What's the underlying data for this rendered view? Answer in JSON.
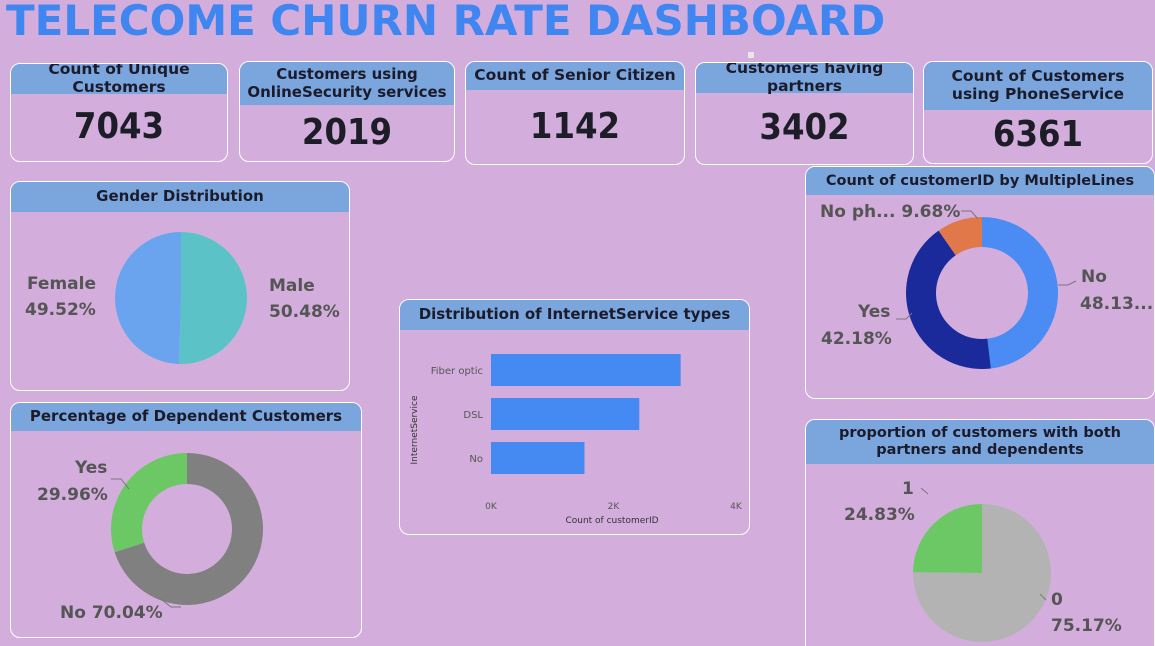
{
  "dashboard": {
    "title": "TELECOME CHURN RATE DASHBOARD"
  },
  "kpis": [
    {
      "label": "Count of Unique Customers",
      "value": "7043"
    },
    {
      "label": "Customers using OnlineSecurity services",
      "value": "2019"
    },
    {
      "label": "Count of Senior Citizen",
      "value": "1142"
    },
    {
      "label": "Customers having partners",
      "value": "3402"
    },
    {
      "label": "Count of Customers using PhoneService",
      "value": "6361"
    }
  ],
  "gender": {
    "title": "Gender Distribution",
    "female_label": "Female",
    "female_pct": "49.52%",
    "male_label": "Male",
    "male_pct": "50.48%",
    "colors": {
      "female": "#6aa3ee",
      "male": "#5bc3c8"
    }
  },
  "dependents": {
    "title": "Percentage of Dependent Customers",
    "yes_label": "Yes",
    "yes_pct": "29.96%",
    "no_label": "No 70.04%",
    "colors": {
      "yes": "#6cc865",
      "no": "#808080"
    }
  },
  "internet": {
    "title": "Distribution of InternetService types",
    "ylabel": "InternetService",
    "xlabel": "Count of customerID",
    "ticks": [
      "0K",
      "2K",
      "4K"
    ],
    "color": "#448af2"
  },
  "multiplelines": {
    "title": "Count of customerID by MultipleLines",
    "nophone_label": "No ph... 9.68%",
    "no_label": "No",
    "no_pct": "48.13...",
    "yes_label": "Yes",
    "yes_pct": "42.18%",
    "colors": {
      "no": "#4a8cf4",
      "yes": "#1a2a9a",
      "nophone": "#e0784a"
    }
  },
  "partners_dependents": {
    "title": "proportion of customers with both partners and dependents",
    "one_label": "1",
    "one_pct": "24.83%",
    "zero_label": "0",
    "zero_pct": "75.17%",
    "colors": {
      "one": "#6cc865",
      "zero": "#b3b3b3"
    }
  },
  "chart_data": [
    {
      "type": "pie",
      "title": "Gender Distribution",
      "categories": [
        "Female",
        "Male"
      ],
      "values": [
        49.52,
        50.48
      ]
    },
    {
      "type": "pie",
      "title": "Percentage of Dependent Customers",
      "categories": [
        "Yes",
        "No"
      ],
      "values": [
        29.96,
        70.04
      ]
    },
    {
      "type": "bar",
      "title": "Distribution of InternetService types",
      "categories": [
        "Fiber optic",
        "DSL",
        "No"
      ],
      "values": [
        3096,
        2421,
        1526
      ],
      "xlabel": "Count of customerID",
      "ylabel": "InternetService",
      "xlim": [
        0,
        4000
      ]
    },
    {
      "type": "pie",
      "title": "Count of customerID by MultipleLines",
      "categories": [
        "No",
        "Yes",
        "No phone service"
      ],
      "values": [
        48.13,
        42.18,
        9.68
      ]
    },
    {
      "type": "pie",
      "title": "proportion of customers with both partners and dependents",
      "categories": [
        "1",
        "0"
      ],
      "values": [
        24.83,
        75.17
      ]
    }
  ]
}
